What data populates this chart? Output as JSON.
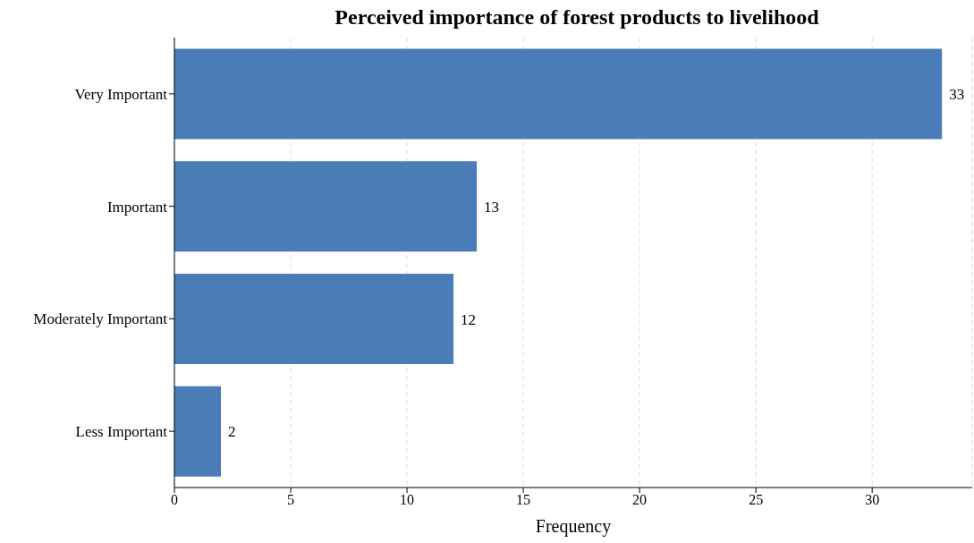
{
  "chart_data": {
    "type": "bar",
    "orientation": "horizontal",
    "title": "Perceived importance of forest products to livelihood",
    "xlabel": "Frequency",
    "categories": [
      "Very Important",
      "Important",
      "Moderately Important",
      "Less Important"
    ],
    "values": [
      33,
      13,
      12,
      2
    ],
    "color": "#4a7db8",
    "data_labels": true,
    "xlim": [
      0,
      34.3
    ],
    "xticks": [
      0,
      5,
      10,
      15,
      20,
      25,
      30
    ],
    "grid": "x"
  }
}
